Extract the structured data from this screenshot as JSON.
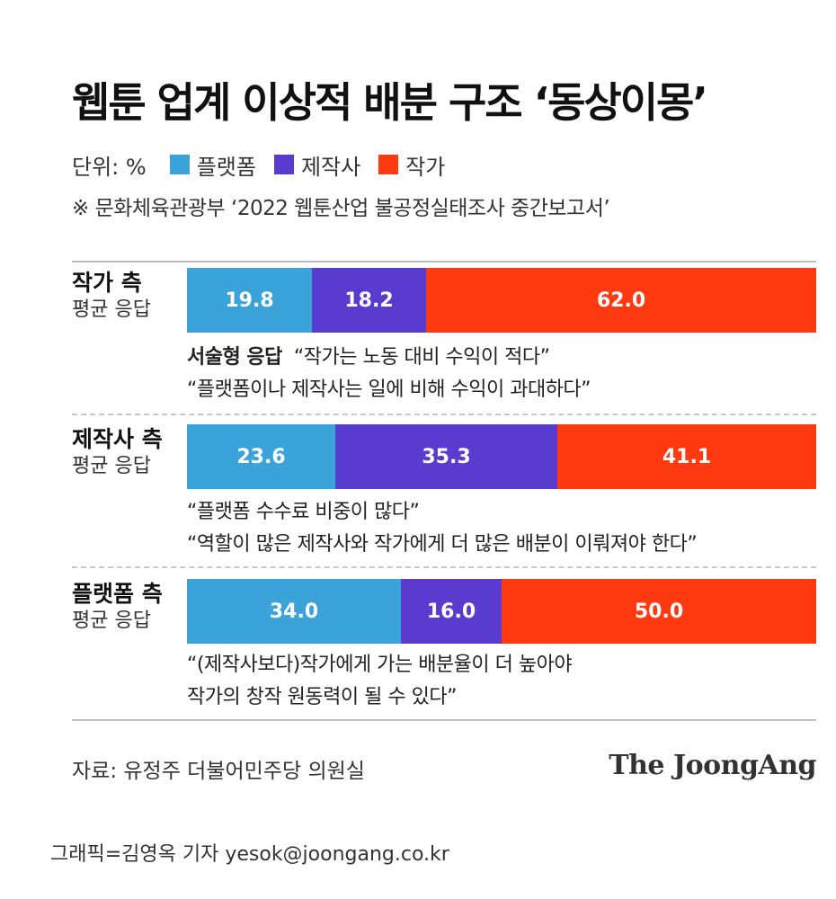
{
  "title": "웹툰 업계 이상적 배분 구조 ‘동상이몽’",
  "unit_label": "단위: %",
  "legend": [
    {
      "label": "플랫폼",
      "color": "#3aa3d9"
    },
    {
      "label": "제작사",
      "color": "#5a3bd0"
    },
    {
      "label": "작가",
      "color": "#ff3a10"
    }
  ],
  "source_note": "※ 문화체육관광부 ‘2022 웹툰산업 불공정실태조사 중간보고서’",
  "chart_data": {
    "type": "bar",
    "orientation": "horizontal-stacked-100",
    "categories": [
      "작가 측 평균 응답",
      "제작사 측 평균 응답",
      "플랫폼 측 평균 응답"
    ],
    "series": [
      {
        "name": "플랫폼",
        "values": [
          19.8,
          23.6,
          34.0
        ]
      },
      {
        "name": "제작사",
        "values": [
          18.2,
          35.3,
          16.0
        ]
      },
      {
        "name": "작가",
        "values": [
          62.0,
          41.1,
          50.0
        ]
      }
    ],
    "value_labels": [
      [
        "19.8",
        "18.2",
        "62.0"
      ],
      [
        "23.6",
        "35.3",
        "41.1"
      ],
      [
        "34.0",
        "16.0",
        "50.0"
      ]
    ],
    "xlim": [
      0,
      100
    ]
  },
  "groups": [
    {
      "title": "작가 측",
      "subtitle": "평균 응답",
      "comment_lead": "서술형 응답",
      "comments": [
        "“작가는 노동 대비 수익이 적다”",
        "“플랫폼이나 제작사는 일에 비해 수익이 과대하다”"
      ]
    },
    {
      "title": "제작사 측",
      "subtitle": "평균 응답",
      "comment_lead": "",
      "comments": [
        "“플랫폼 수수료 비중이 많다”",
        "“역할이 많은 제작사와 작가에게 더 많은 배분이 이뤄져야 한다”"
      ]
    },
    {
      "title": "플랫폼 측",
      "subtitle": "평균 응답",
      "comment_lead": "",
      "comments": [
        "“(제작사보다)작가에게 가는 배분율이 더 높아야",
        "작가의 창작 원동력이 될 수 있다”"
      ]
    }
  ],
  "footer_source": "자료: 유정주 더불어민주당 의원실",
  "logo_text": "The JoongAng",
  "credit": "그래픽=김영옥 기자 yesok@joongang.co.kr"
}
